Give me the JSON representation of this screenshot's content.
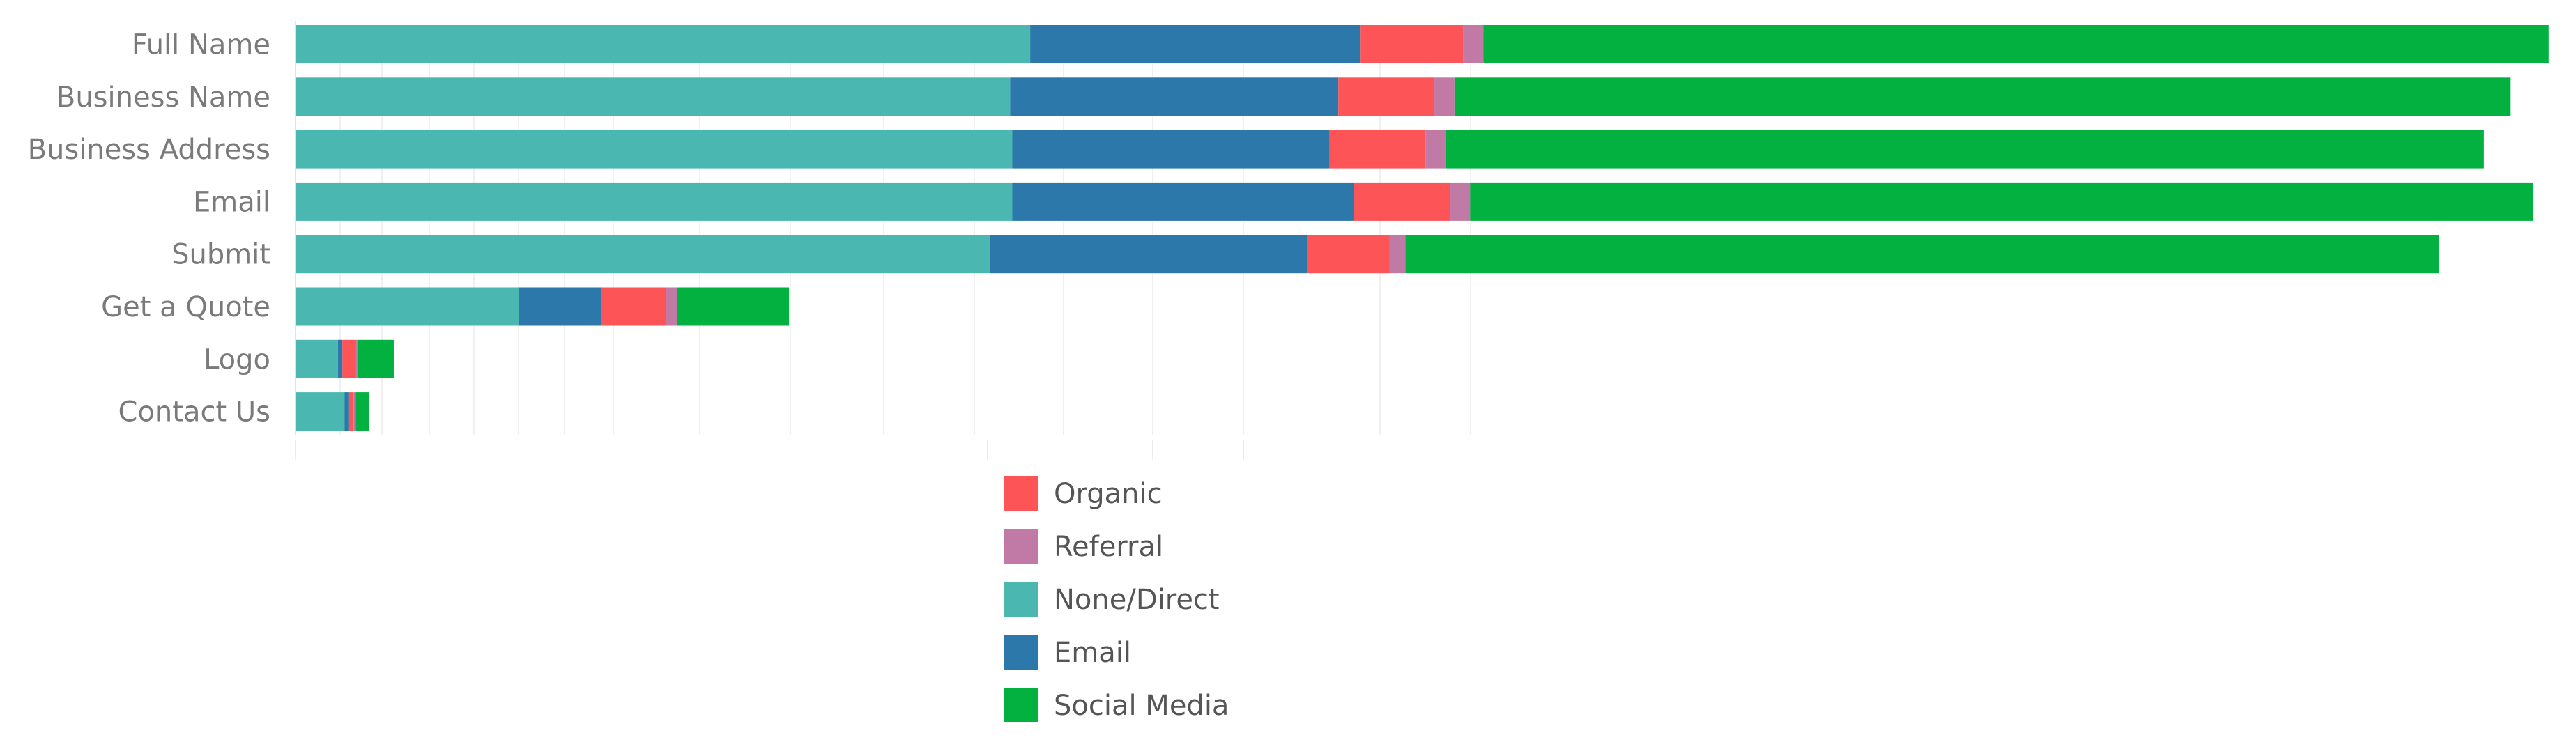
{
  "chart_data": {
    "type": "bar",
    "orientation": "horizontal",
    "stacked": true,
    "title": "",
    "xlabel": "",
    "ylabel": "",
    "categories": [
      "Full Name",
      "Business Name",
      "Business Address",
      "Email",
      "Submit",
      "Get a Quote",
      "Logo",
      "Contact Us"
    ],
    "series": [
      {
        "name": "None/Direct",
        "color": "#4ab8b0",
        "values": [
          329,
          320,
          321,
          321,
          311,
          100,
          19,
          22
        ]
      },
      {
        "name": "Email",
        "color": "#2c78ab",
        "values": [
          148,
          147,
          142,
          153,
          142,
          37,
          2,
          2
        ]
      },
      {
        "name": "Organic",
        "color": "#fd5457",
        "values": [
          46,
          43,
          43,
          43,
          37,
          29,
          6,
          2
        ]
      },
      {
        "name": "Referral",
        "color": "#c17aa5",
        "values": [
          9,
          9,
          9,
          9,
          7,
          5,
          1,
          1
        ]
      },
      {
        "name": "Social Media",
        "color": "#03b140",
        "values": [
          477,
          473,
          465,
          476,
          463,
          50,
          16,
          6
        ]
      }
    ],
    "xlim": [
      0,
      1010
    ],
    "grid": "vertical",
    "legend": {
      "position": "bottom-center",
      "order": [
        "Organic",
        "Referral",
        "None/Direct",
        "Email",
        "Social Media"
      ]
    }
  }
}
